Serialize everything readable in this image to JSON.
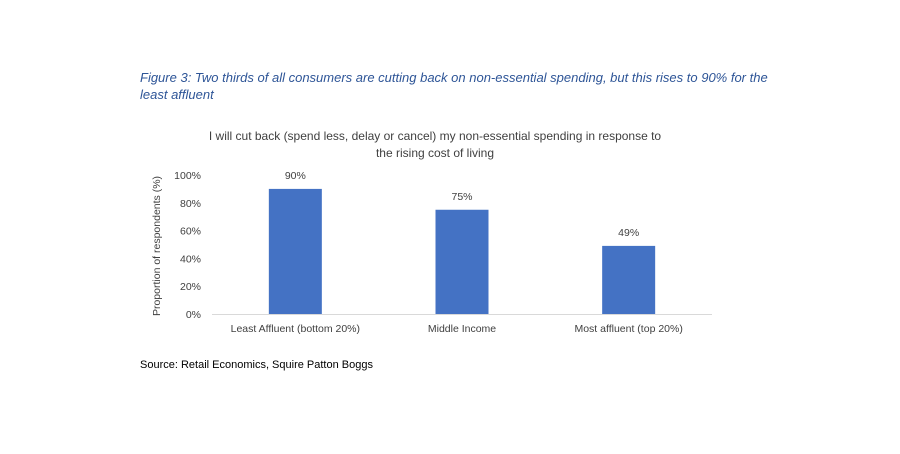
{
  "figure": {
    "caption": "Figure 3: Two thirds of all consumers are cutting back on non-essential spending, but this rises to 90% for the least affluent",
    "source": "Source: Retail Economics, Squire Patton Boggs"
  },
  "chart_data": {
    "type": "bar",
    "title_lines": [
      "I will cut back (spend less, delay or cancel) my non-essential spending in response to",
      "the rising cost of living"
    ],
    "xlabel": "",
    "ylabel": "Proportion of respondents (%)",
    "categories": [
      "Least Affluent (bottom 20%)",
      "Middle Income",
      "Most affluent (top 20%)"
    ],
    "values": [
      90,
      75,
      49
    ],
    "data_labels": [
      "90%",
      "75%",
      "49%"
    ],
    "ylim": [
      0,
      100
    ],
    "yticks": [
      0,
      20,
      40,
      60,
      80,
      100
    ],
    "ytick_labels": [
      "0%",
      "20%",
      "40%",
      "60%",
      "80%",
      "100%"
    ],
    "grid": false,
    "bar_color": "#4472c4"
  }
}
